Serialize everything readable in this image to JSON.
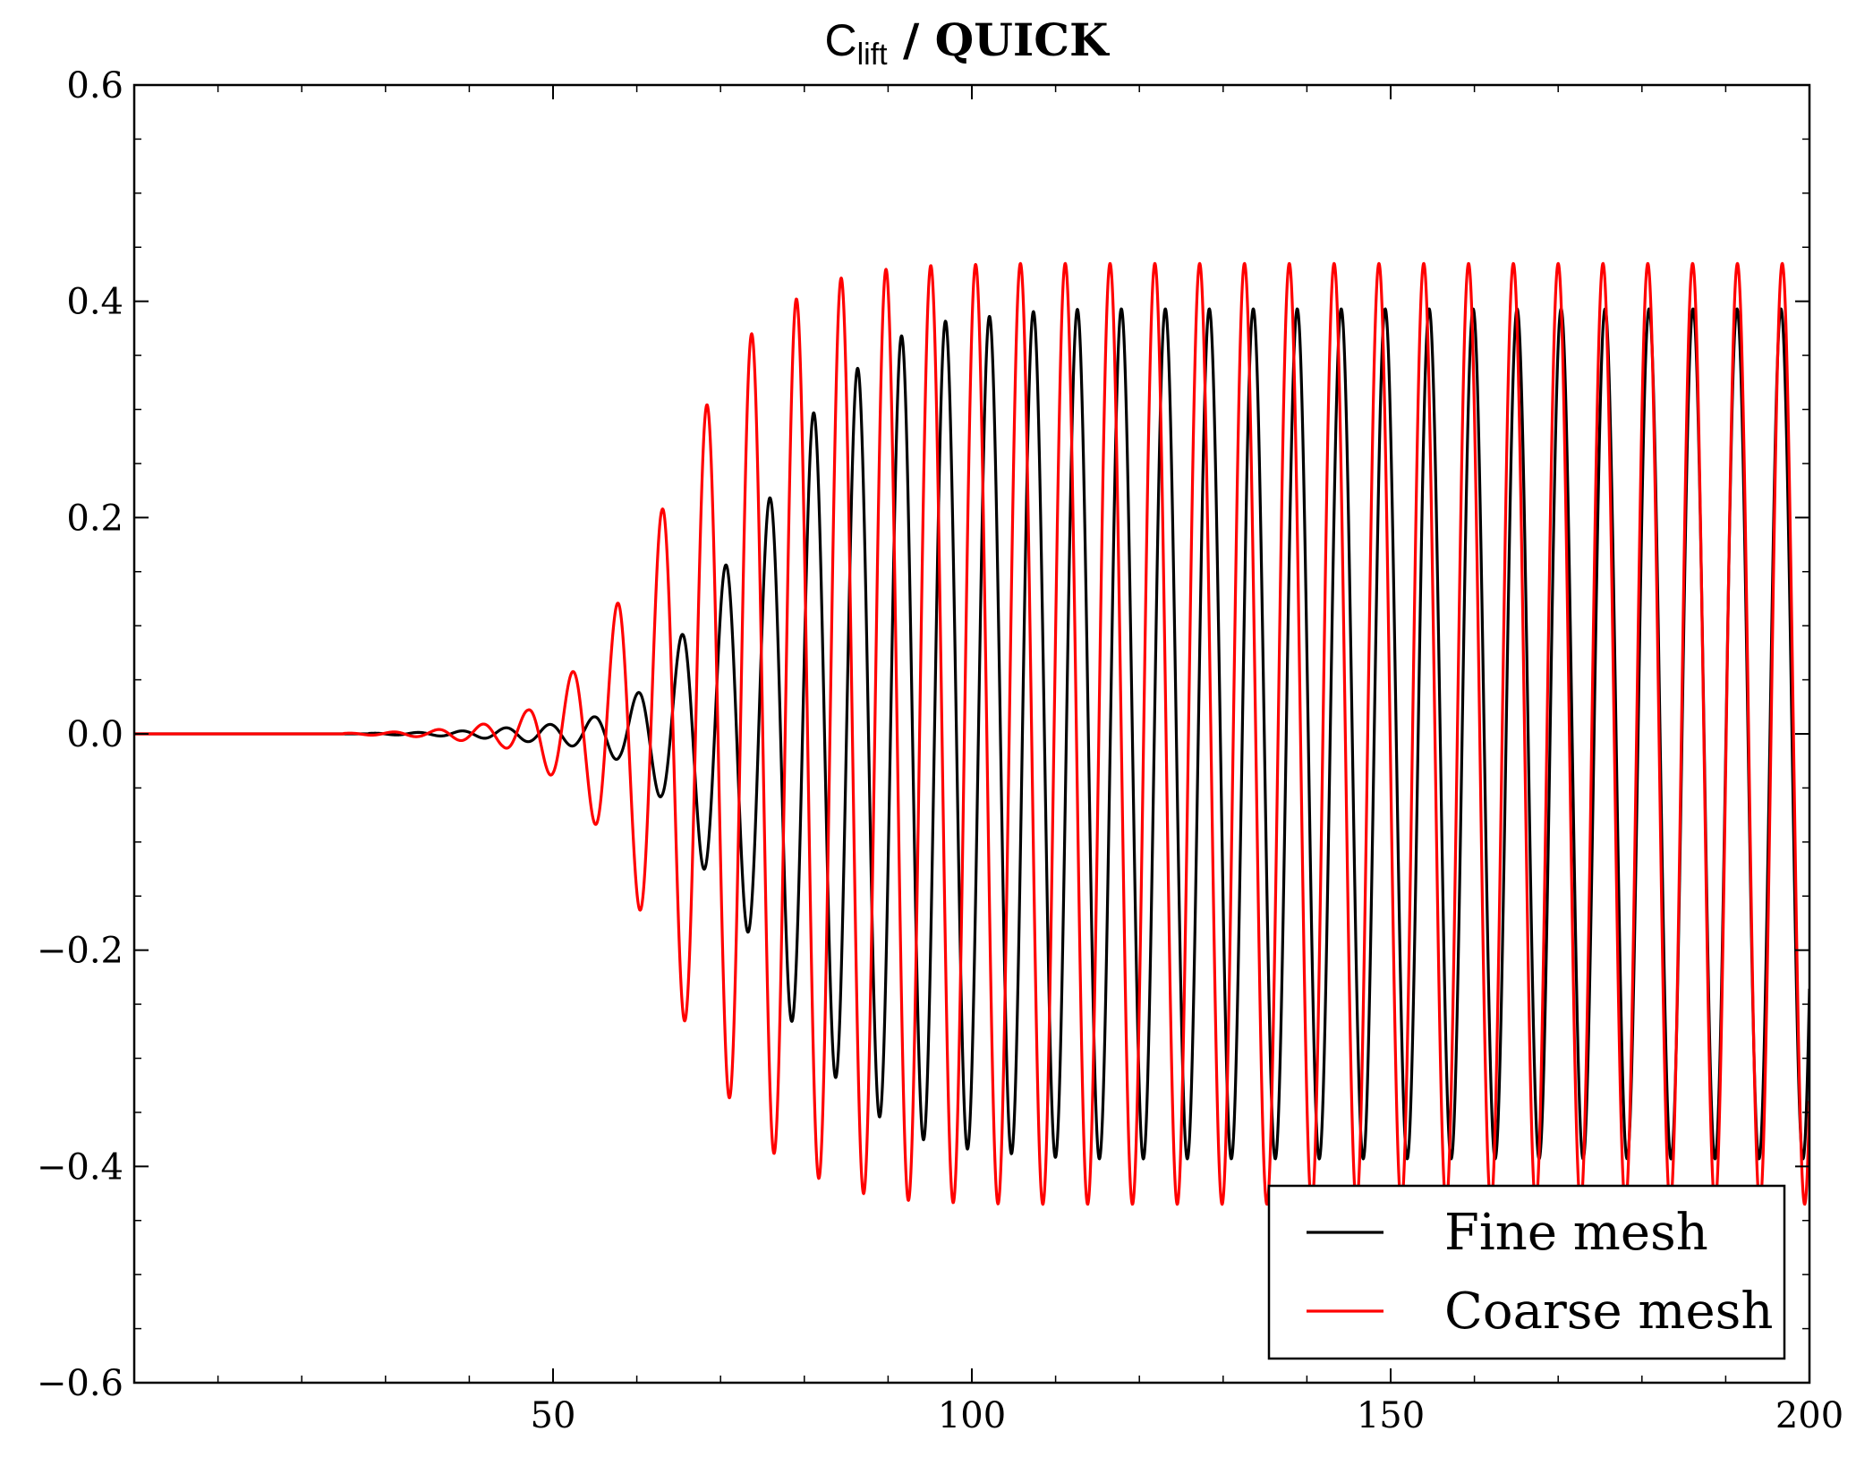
{
  "chart_data": {
    "type": "line",
    "title": {
      "main": "C",
      "subscript": "lift",
      "suffix": " / QUICK"
    },
    "xlabel": "",
    "ylabel": "",
    "xlim": [
      0,
      200
    ],
    "ylim": [
      -0.6,
      0.6
    ],
    "x_ticks": [
      50,
      100,
      150,
      200
    ],
    "x_tick_labels": [
      "50",
      "100",
      "150",
      "200"
    ],
    "y_ticks": [
      -0.6,
      -0.4,
      -0.2,
      0.0,
      0.2,
      0.4,
      0.6
    ],
    "y_tick_labels": [
      "−0.6",
      "−0.4",
      "−0.2",
      "0.0",
      "0.2",
      "0.4",
      "0.6"
    ],
    "grid": false,
    "legend": {
      "position": "lower-right",
      "entries": [
        "Fine mesh",
        "Coarse mesh"
      ]
    },
    "series": [
      {
        "name": "Fine mesh",
        "color": "#000000",
        "period": 5.25,
        "phase_peak_x": 81.1,
        "growth_start_x": 28,
        "saturation_amplitude": 0.393,
        "envelope_points": [
          [
            28,
            0.0005
          ],
          [
            35,
            0.0015
          ],
          [
            40,
            0.003
          ],
          [
            45,
            0.006
          ],
          [
            50,
            0.009
          ],
          [
            53,
            0.012
          ],
          [
            55,
            0.016
          ],
          [
            58,
            0.025
          ],
          [
            60,
            0.037
          ],
          [
            63,
            0.06
          ],
          [
            66,
            0.1
          ],
          [
            70,
            0.15
          ],
          [
            73,
            0.18
          ],
          [
            76,
            0.22
          ],
          [
            78,
            0.26
          ],
          [
            81,
            0.296
          ],
          [
            84,
            0.32
          ],
          [
            87,
            0.343
          ],
          [
            90,
            0.36
          ],
          [
            92,
            0.37
          ],
          [
            97,
            0.382
          ],
          [
            102,
            0.386
          ],
          [
            108,
            0.391
          ],
          [
            114,
            0.393
          ],
          [
            200,
            0.393
          ]
        ]
      },
      {
        "name": "Coarse mesh",
        "color": "#ff0000",
        "period": 5.35,
        "phase_peak_x": 84.4,
        "growth_start_x": 25,
        "saturation_amplitude": 0.435,
        "envelope_points": [
          [
            25,
            0.0005
          ],
          [
            30,
            0.0015
          ],
          [
            35,
            0.003
          ],
          [
            40,
            0.007
          ],
          [
            44,
            0.012
          ],
          [
            47,
            0.022
          ],
          [
            50,
            0.04
          ],
          [
            54,
            0.07
          ],
          [
            57,
            0.11
          ],
          [
            60,
            0.157
          ],
          [
            63,
            0.207
          ],
          [
            65,
            0.255
          ],
          [
            68,
            0.3
          ],
          [
            71,
            0.336
          ],
          [
            73,
            0.365
          ],
          [
            76,
            0.386
          ],
          [
            79,
            0.402
          ],
          [
            82,
            0.412
          ],
          [
            84,
            0.421
          ],
          [
            87,
            0.425
          ],
          [
            90,
            0.43
          ],
          [
            95,
            0.433
          ],
          [
            105,
            0.435
          ],
          [
            200,
            0.435
          ]
        ]
      }
    ]
  }
}
